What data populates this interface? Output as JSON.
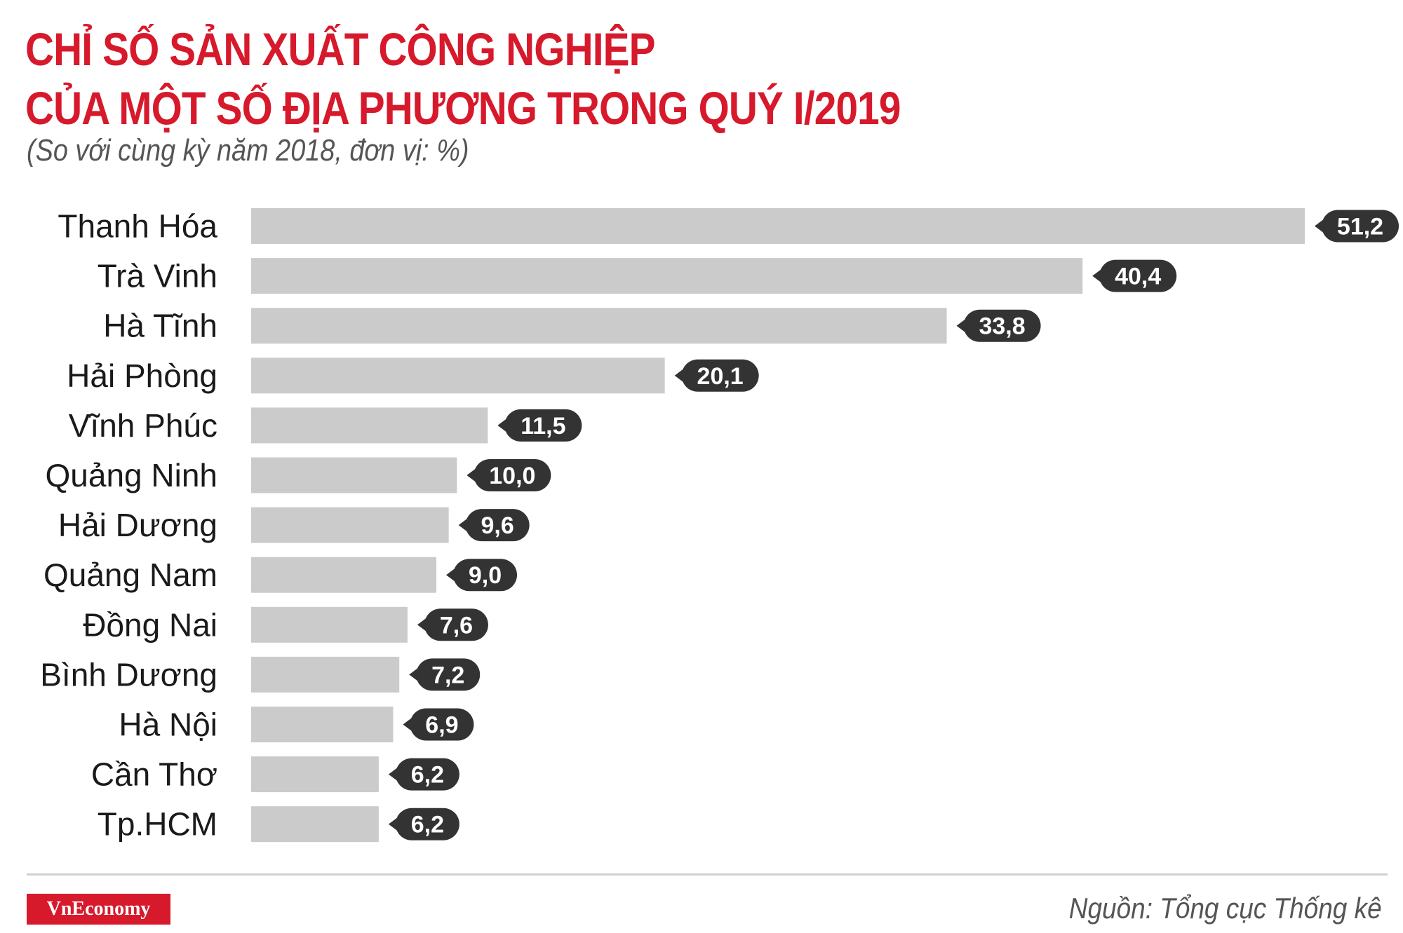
{
  "header": {
    "title_line1": "CHỈ SỐ SẢN XUẤT CÔNG NGHIỆP",
    "title_line2": "CỦA MỘT SỐ ĐỊA PHƯƠNG TRONG QUÝ I/2019",
    "subtitle": "(So với cùng kỳ năm 2018, đơn vị: %)"
  },
  "footer": {
    "logo": "VnEconomy",
    "source": "Nguồn: Tổng cục Thống kê"
  },
  "colors": {
    "accent": "#d7192c",
    "bar": "#cccbcb",
    "label_bubble": "#333333"
  },
  "chart_data": {
    "type": "bar",
    "orientation": "horizontal",
    "categories": [
      "Thanh Hóa",
      "Trà Vinh",
      "Hà Tĩnh",
      "Hải Phòng",
      "Vĩnh Phúc",
      "Quảng Ninh",
      "Hải Dương",
      "Quảng Nam",
      "Đồng Nai",
      "Bình Dương",
      "Hà Nội",
      "Cần Thơ",
      "Tp.HCM"
    ],
    "values": [
      51.2,
      40.4,
      33.8,
      20.1,
      11.5,
      10.0,
      9.6,
      9.0,
      7.6,
      7.2,
      6.9,
      6.2,
      6.2
    ],
    "value_labels": [
      "51,2",
      "40,4",
      "33,8",
      "20,1",
      "11,5",
      "10,0",
      "9,6",
      "9,0",
      "7,6",
      "7,2",
      "6,9",
      "6,2",
      "6,2"
    ],
    "xlim": [
      0,
      51.2
    ],
    "grid": false,
    "legend": "none"
  }
}
